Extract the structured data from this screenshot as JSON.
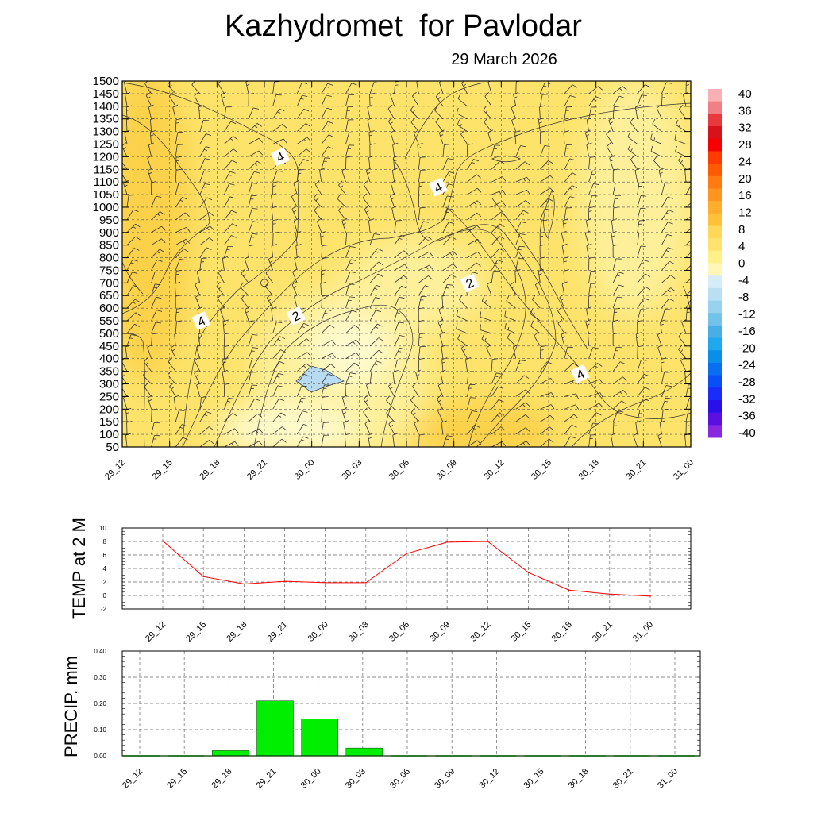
{
  "title": "Kazhydromet  for Pavlodar",
  "date": "29 March 2026",
  "chart_data": [
    {
      "type": "heatmap",
      "description_kind": "time-height cross section of temperature with wind barbs",
      "x_ticks": [
        "29_12",
        "29_15",
        "29_18",
        "29_21",
        "30_00",
        "30_03",
        "30_06",
        "30_09",
        "30_12",
        "30_15",
        "30_18",
        "30_21",
        "31_00"
      ],
      "y_ticks": [
        1500,
        1450,
        1400,
        1350,
        1300,
        1250,
        1200,
        1150,
        1100,
        1050,
        1000,
        950,
        900,
        850,
        800,
        750,
        700,
        650,
        600,
        550,
        500,
        450,
        400,
        350,
        300,
        250,
        200,
        150,
        100,
        50
      ],
      "ylim": [
        50,
        1500
      ],
      "colorbar_labels": [
        "40",
        "36",
        "32",
        "28",
        "24",
        "20",
        "16",
        "12",
        "8",
        "4",
        "0",
        "-4",
        "-8",
        "-12",
        "-16",
        "-20",
        "-24",
        "-28",
        "-32",
        "-36",
        "-40"
      ],
      "colorbar_colors": [
        "#f8b0b4",
        "#f07f86",
        "#e83a3e",
        "#d8121a",
        "#f80000",
        "#ff3b00",
        "#ff5a00",
        "#ff7a10",
        "#ff9420",
        "#ffad2a",
        "#ffc03a",
        "#ffd85a",
        "#ffe36e",
        "#fff08a",
        "#fff6b8",
        "#d6ecf6",
        "#b8e0f2",
        "#98d2ee",
        "#72c2ea",
        "#4aaee6",
        "#20a8ee",
        "#0a8ee8",
        "#0a6ef0",
        "#0a4ef8",
        "#1a2cf8",
        "#2a10e8",
        "#5a10e0",
        "#8a28e0"
      ],
      "contour_labels": [
        {
          "text": "4",
          "x": "29_22",
          "y": 1200
        },
        {
          "text": "4",
          "x": "30_08",
          "y": 1080
        },
        {
          "text": "2",
          "x": "30_10",
          "y": 700
        },
        {
          "text": "2",
          "x": "29_23",
          "y": 570
        },
        {
          "text": "4",
          "x": "29_17",
          "y": 550
        },
        {
          "text": "4",
          "x": "30_17",
          "y": 340
        }
      ],
      "fill_colors": {
        "warm_high": "#fbd148",
        "warm": "#fde36a",
        "mild": "#fef09a",
        "cool": "#fffbd0",
        "cold": "#b7dcf1"
      }
    },
    {
      "type": "line",
      "ylabel": "TEMP at 2 M",
      "categories": [
        "29_12",
        "29_15",
        "29_18",
        "29_21",
        "30_00",
        "30_03",
        "30_06",
        "30_09",
        "30_12",
        "30_15",
        "30_18",
        "30_21",
        "31_00"
      ],
      "values": [
        8.1,
        2.8,
        1.7,
        2.1,
        1.9,
        1.9,
        6.2,
        7.9,
        8.0,
        3.4,
        0.8,
        0.2,
        -0.1
      ],
      "ylim": [
        -2,
        10
      ],
      "y_ticks": [
        -2,
        0,
        2,
        4,
        6,
        8,
        10
      ],
      "grid": true,
      "color": "#ff0000"
    },
    {
      "type": "bar",
      "ylabel": "PRECIP, mm",
      "categories": [
        "29_12",
        "29_15",
        "29_18",
        "29_21",
        "30_00",
        "30_03",
        "30_06",
        "30_09",
        "30_12",
        "30_15",
        "30_18",
        "30_21",
        "31_00"
      ],
      "values": [
        0,
        0,
        0.02,
        0.21,
        0.14,
        0.03,
        0,
        0,
        0,
        0,
        0,
        0,
        0
      ],
      "ylim": [
        0,
        0.4
      ],
      "y_ticks": [
        "0.00",
        "0.10",
        "0.20",
        "0.30",
        "0.40"
      ],
      "grid": true,
      "color": "#00ee00"
    }
  ]
}
